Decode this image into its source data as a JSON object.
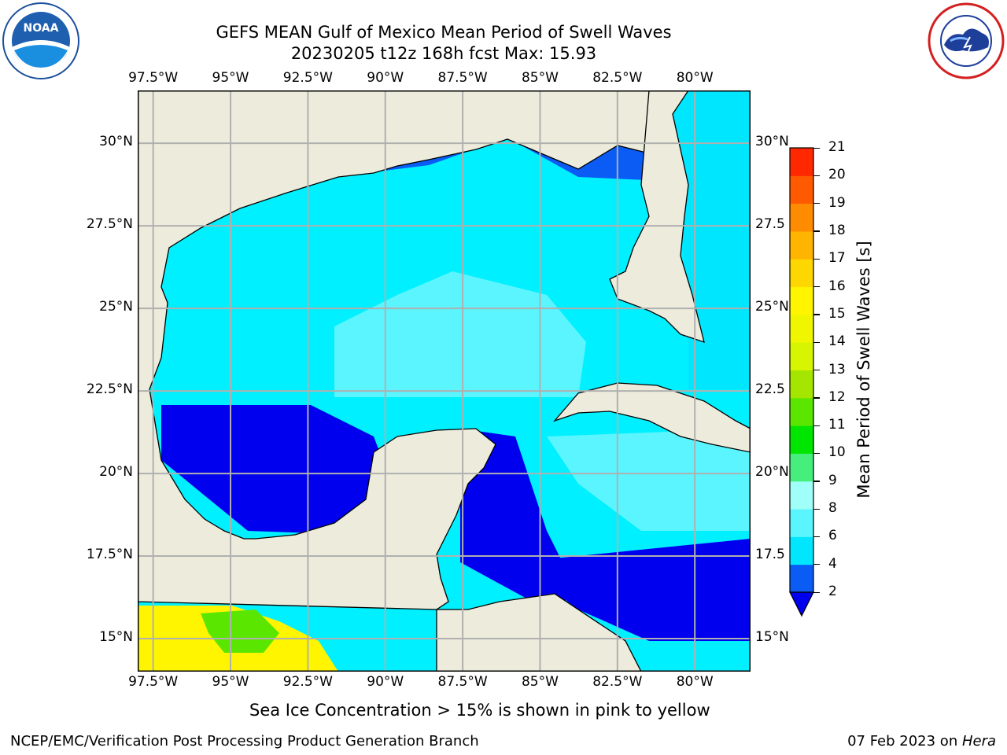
{
  "header": {
    "title_line1": "GEFS MEAN Gulf of Mexico Mean Period of Swell Waves",
    "title_line2": "20230205 t12z 168h fcst   Max: 15.93"
  },
  "logos": {
    "left": {
      "name": "noaa-logo",
      "text": "NOAA"
    },
    "right": {
      "name": "nws-logo",
      "text": "NATIONAL WEATHER SERVICE"
    }
  },
  "map": {
    "lon_labels": [
      "97.5°W",
      "95°W",
      "92.5°W",
      "90°W",
      "87.5°W",
      "85°W",
      "82.5°W",
      "80°W"
    ],
    "lat_labels": [
      "30°N",
      "27.5°N",
      "25°N",
      "22.5°N",
      "20°N",
      "17.5°N",
      "15°N"
    ],
    "right_lat_labels": [
      "30°N",
      "27.5",
      "25°N",
      "22.5",
      "20°N",
      "17.5",
      "15°N"
    ],
    "extent": {
      "lon": [
        -98,
        -78.2
      ],
      "lat": [
        14,
        31.6
      ]
    },
    "colors": {
      "land": "#ecebdc",
      "grid": "#b0b0b0",
      "coast": "#000000"
    }
  },
  "colorbar": {
    "label": "Mean Period of Swell Waves [s]",
    "ticks": [
      "2",
      "4",
      "6",
      "8",
      "9",
      "10",
      "11",
      "12",
      "13",
      "14",
      "15",
      "16",
      "17",
      "18",
      "19",
      "20",
      "21"
    ],
    "colors": [
      "#0a5cf5",
      "#00e6ff",
      "#5af5ff",
      "#a0fff8",
      "#46ef7c",
      "#00e600",
      "#5be600",
      "#a5e600",
      "#d7f500",
      "#f0f500",
      "#fff500",
      "#ffd700",
      "#ffb400",
      "#ff8c00",
      "#ff5a00",
      "#ff2800"
    ],
    "under_color": "#0000ee"
  },
  "footer": {
    "note": "Sea Ice Concentration > 15% is shown in pink to yellow",
    "left": "NCEP/EMC/Verification Post Processing Product Generation Branch",
    "date_prefix": "07 Feb 2023 on ",
    "date_host": "Hera"
  }
}
